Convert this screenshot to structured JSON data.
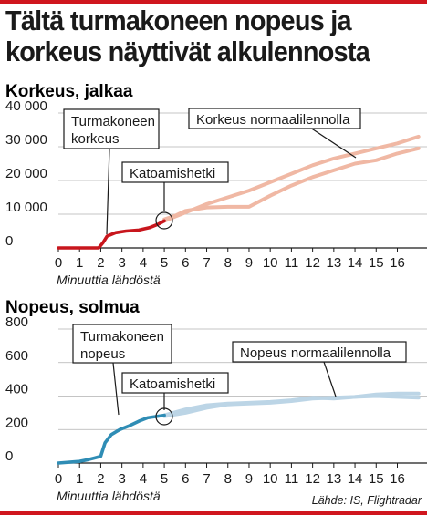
{
  "headline_lines": [
    "Tältä turmakoneen nopeus ja",
    "korkeus näyttivät alkulennosta"
  ],
  "source": "Lähde: IS, Flightradar",
  "colors": {
    "accent_bar": "#d0161e",
    "crash_altitude": "#c8161d",
    "normal_altitude": "#f0b8a4",
    "crash_speed": "#2f8db5",
    "normal_speed": "#bcd5e6",
    "grid": "#b0b0b0"
  },
  "chart_data": [
    {
      "type": "line",
      "title": "Korkeus, jalkaa",
      "xlabel": "Minuuttia lähdöstä",
      "ylabel": "",
      "xlim": [
        0,
        17
      ],
      "ylim": [
        0,
        40000
      ],
      "x_ticks": [
        0,
        1,
        2,
        3,
        4,
        5,
        6,
        7,
        8,
        9,
        10,
        11,
        12,
        13,
        14,
        15,
        16
      ],
      "y_ticks": [
        0,
        10000,
        20000,
        30000,
        40000
      ],
      "y_tick_labels": [
        "0",
        "10 000",
        "20 000",
        "30 000",
        "40 000"
      ],
      "grid": "horizontal",
      "series": [
        {
          "role": "crash",
          "points": [
            [
              0,
              0
            ],
            [
              1,
              0
            ],
            [
              1.9,
              0
            ],
            [
              2.1,
              1500
            ],
            [
              2.3,
              3500
            ],
            [
              2.7,
              4500
            ],
            [
              3.2,
              5000
            ],
            [
              3.8,
              5300
            ],
            [
              4.3,
              6000
            ],
            [
              4.7,
              7000
            ],
            [
              5,
              8000
            ]
          ]
        },
        {
          "role": "normal_a",
          "points": [
            [
              5,
              8500
            ],
            [
              5.5,
              9500
            ],
            [
              6,
              11000
            ],
            [
              7,
              12000
            ],
            [
              8,
              12200
            ],
            [
              9,
              12200
            ],
            [
              10,
              15500
            ],
            [
              11,
              18500
            ],
            [
              12,
              21000
            ],
            [
              13,
              23000
            ],
            [
              14,
              25000
            ],
            [
              15,
              26000
            ],
            [
              16,
              28000
            ],
            [
              17,
              29500
            ]
          ]
        },
        {
          "role": "normal_b",
          "points": [
            [
              5,
              8000
            ],
            [
              6,
              10500
            ],
            [
              7,
              13000
            ],
            [
              8,
              15000
            ],
            [
              9,
              17000
            ],
            [
              10,
              19500
            ],
            [
              11,
              22000
            ],
            [
              12,
              24500
            ],
            [
              13,
              26500
            ],
            [
              14,
              28000
            ],
            [
              15,
              29500
            ],
            [
              16,
              31000
            ],
            [
              17,
              33000
            ]
          ]
        }
      ],
      "annotations": [
        {
          "text_lines": [
            "Turmakoneen",
            "korkeus"
          ]
        },
        {
          "text_lines": [
            "Korkeus normaalilennolla"
          ]
        },
        {
          "text_lines": [
            "Katoamishetki"
          ]
        }
      ]
    },
    {
      "type": "line",
      "title": "Nopeus, solmua",
      "xlabel": "Minuuttia lähdöstä",
      "ylabel": "",
      "xlim": [
        0,
        17
      ],
      "ylim": [
        0,
        800
      ],
      "x_ticks": [
        0,
        1,
        2,
        3,
        4,
        5,
        6,
        7,
        8,
        9,
        10,
        11,
        12,
        13,
        14,
        15,
        16
      ],
      "y_ticks": [
        0,
        200,
        400,
        600,
        800
      ],
      "y_tick_labels": [
        "0",
        "200",
        "400",
        "600",
        "800"
      ],
      "grid": "horizontal",
      "series": [
        {
          "role": "crash",
          "points": [
            [
              0,
              0
            ],
            [
              1,
              10
            ],
            [
              1.4,
              20
            ],
            [
              1.7,
              30
            ],
            [
              2,
              40
            ],
            [
              2.2,
              120
            ],
            [
              2.5,
              170
            ],
            [
              2.9,
              200
            ],
            [
              3.3,
              220
            ],
            [
              3.8,
              250
            ],
            [
              4.2,
              270
            ],
            [
              4.7,
              280
            ],
            [
              5,
              285
            ]
          ]
        },
        {
          "role": "normal_a",
          "points": [
            [
              5,
              280
            ],
            [
              6,
              300
            ],
            [
              7,
              330
            ],
            [
              8,
              350
            ],
            [
              9,
              355
            ],
            [
              10,
              360
            ],
            [
              11,
              370
            ],
            [
              12,
              385
            ],
            [
              13,
              390
            ],
            [
              14,
              395
            ],
            [
              15,
              410
            ],
            [
              16,
              415
            ],
            [
              17,
              415
            ]
          ]
        },
        {
          "role": "normal_b",
          "points": [
            [
              5,
              285
            ],
            [
              6,
              320
            ],
            [
              7,
              345
            ],
            [
              8,
              355
            ],
            [
              9,
              360
            ],
            [
              10,
              365
            ],
            [
              11,
              375
            ],
            [
              12,
              390
            ],
            [
              13,
              385
            ],
            [
              14,
              395
            ],
            [
              15,
              400
            ],
            [
              16,
              395
            ],
            [
              17,
              390
            ]
          ]
        }
      ],
      "annotations": [
        {
          "text_lines": [
            "Turmakoneen",
            "nopeus"
          ]
        },
        {
          "text_lines": [
            "Nopeus normaalilennolla"
          ]
        },
        {
          "text_lines": [
            "Katoamishetki"
          ]
        }
      ]
    }
  ]
}
